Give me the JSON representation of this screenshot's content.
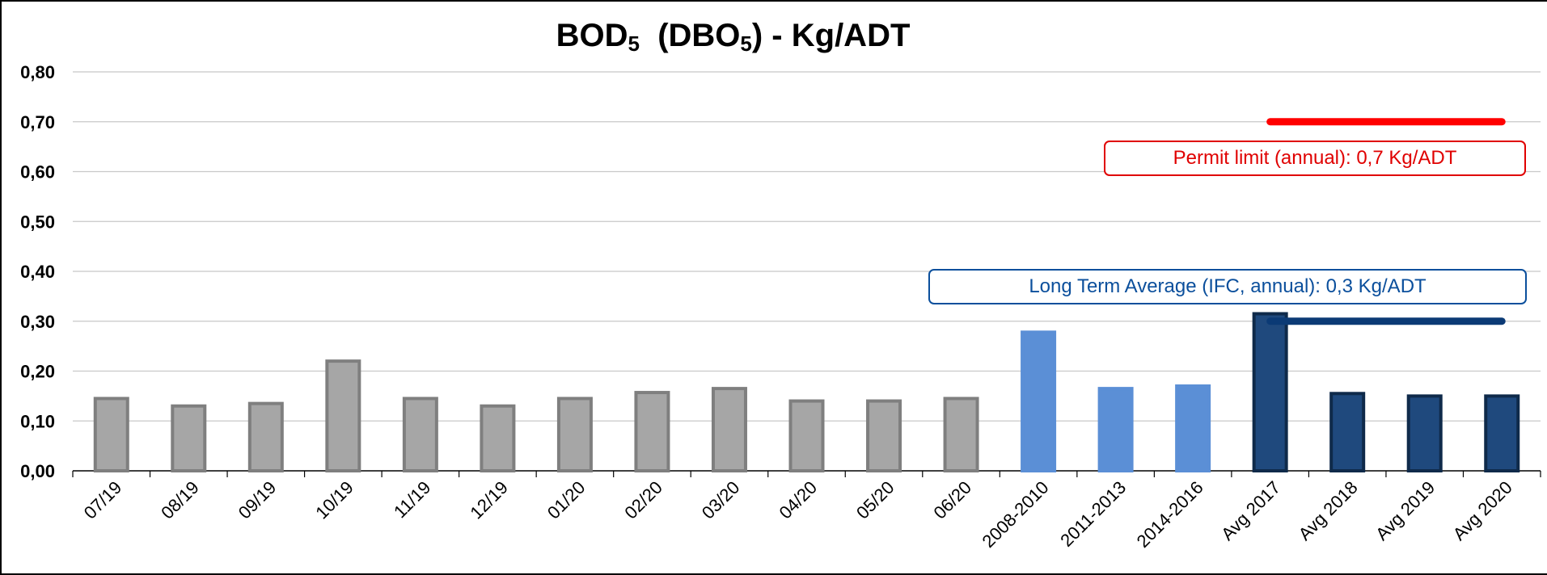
{
  "chart_data": {
    "type": "bar",
    "title": {
      "bod": "BOD",
      "bod_sub": "5",
      "dbo": "(DBO",
      "dbo_sub": "5",
      "rest": ") - Kg/ADT"
    },
    "xlabel": "",
    "ylabel": "",
    "ylim": [
      0,
      0.8
    ],
    "yticks": [
      "0,00",
      "0,10",
      "0,20",
      "0,30",
      "0,40",
      "0,50",
      "0,60",
      "0,70",
      "0,80"
    ],
    "grid": true,
    "categories": [
      "07/19",
      "08/19",
      "09/19",
      "10/19",
      "11/19",
      "12/19",
      "01/20",
      "02/20",
      "03/20",
      "04/20",
      "05/20",
      "06/20",
      "2008-2010",
      "2011-2013",
      "2014-2016",
      "Avg 2017",
      "Avg 2018",
      "Avg 2019",
      "Avg 2020"
    ],
    "values": [
      0.145,
      0.13,
      0.135,
      0.22,
      0.145,
      0.13,
      0.145,
      0.157,
      0.165,
      0.14,
      0.14,
      0.145,
      0.278,
      0.165,
      0.17,
      0.315,
      0.155,
      0.15,
      0.15
    ],
    "groups": [
      "monthly",
      "monthly",
      "monthly",
      "monthly",
      "monthly",
      "monthly",
      "monthly",
      "monthly",
      "monthly",
      "monthly",
      "monthly",
      "monthly",
      "historical",
      "historical",
      "historical",
      "annual",
      "annual",
      "annual",
      "annual"
    ],
    "group_colors": {
      "monthly": {
        "fill": "#a6a6a6",
        "stroke": "#7f7f7f"
      },
      "historical": {
        "fill": "#5b8fd6",
        "stroke": "#5b8fd6"
      },
      "annual": {
        "fill": "#1f497d",
        "stroke": "#0f2a4a"
      }
    },
    "reference_lines": [
      {
        "label": "Permit limit (annual): 0,7 Kg/ADT",
        "value": 0.7,
        "from_category": "Avg 2017",
        "to_category": "Avg 2020",
        "color": "#ff0000"
      },
      {
        "label": "Long Term Average (IFC, annual): 0,3 Kg/ADT",
        "value": 0.3,
        "from_category": "Avg 2017",
        "to_category": "Avg 2020",
        "color": "#0b3a75"
      }
    ]
  }
}
